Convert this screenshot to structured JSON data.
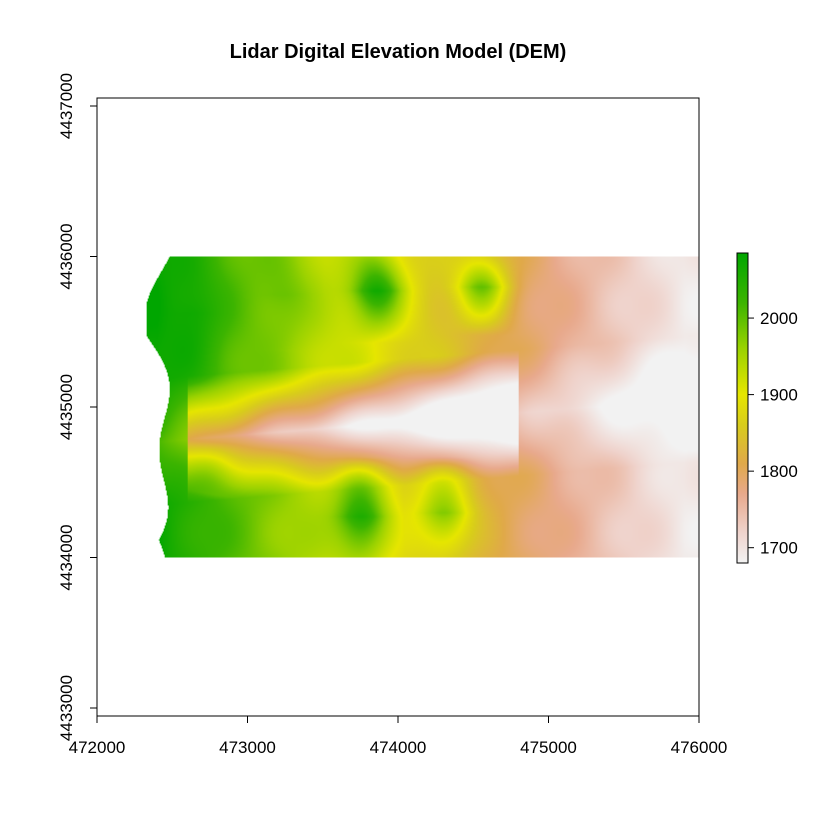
{
  "chart_data": {
    "type": "heatmap",
    "title": "Lidar Digital Elevation Model (DEM)",
    "xlabel": "",
    "ylabel": "",
    "xlim": [
      472000,
      476000
    ],
    "ylim": [
      4433000,
      4437000
    ],
    "x_ticks": [
      "472000",
      "473000",
      "474000",
      "475000",
      "476000"
    ],
    "y_ticks": [
      "4433000",
      "4434000",
      "4435000",
      "4436000",
      "4437000"
    ],
    "grid": false,
    "raster": {
      "extent": {
        "xmin": 472330,
        "xmax": 476000,
        "ymin": 4434000,
        "ymax": 4436000
      },
      "value_range": [
        1680,
        2085
      ],
      "high_terrain_west": 2080,
      "low_terrain_east": 1690,
      "valley_axis_y": 4434900,
      "ridges_north": [
        {
          "x": 472600,
          "y_top": 4436000,
          "y_bottom": 4435250,
          "value": 2080
        },
        {
          "x": 473200,
          "y_top": 4436000,
          "y_bottom": 4435500,
          "value": 2000
        },
        {
          "x": 473850,
          "y_top": 4436000,
          "y_bottom": 4435550,
          "value": 2070
        },
        {
          "x": 474550,
          "y_top": 4436000,
          "y_bottom": 4435600,
          "value": 1990
        }
      ],
      "ridges_south": [
        {
          "x": 472750,
          "y_top": 4434650,
          "y_bottom": 4434150,
          "value": 2000
        },
        {
          "x": 473750,
          "y_top": 4434550,
          "y_bottom": 4434000,
          "value": 2060
        },
        {
          "x": 474300,
          "y_top": 4434550,
          "y_bottom": 4434050,
          "value": 1980
        }
      ]
    },
    "legend": {
      "position": "right",
      "ticks": [
        "1700",
        "1800",
        "1900",
        "2000"
      ],
      "tick_values": [
        1700,
        1800,
        1900,
        2000
      ],
      "range": [
        1680,
        2085
      ],
      "colors": [
        {
          "value": 1680,
          "color": "#f2f2f2"
        },
        {
          "value": 1720,
          "color": "#efd3cc"
        },
        {
          "value": 1770,
          "color": "#e8a98c"
        },
        {
          "value": 1810,
          "color": "#e0a94a"
        },
        {
          "value": 1860,
          "color": "#d8cc1c"
        },
        {
          "value": 1900,
          "color": "#e6e600"
        },
        {
          "value": 1960,
          "color": "#9ad200"
        },
        {
          "value": 2020,
          "color": "#3cb400"
        },
        {
          "value": 2085,
          "color": "#00a600"
        }
      ]
    }
  }
}
